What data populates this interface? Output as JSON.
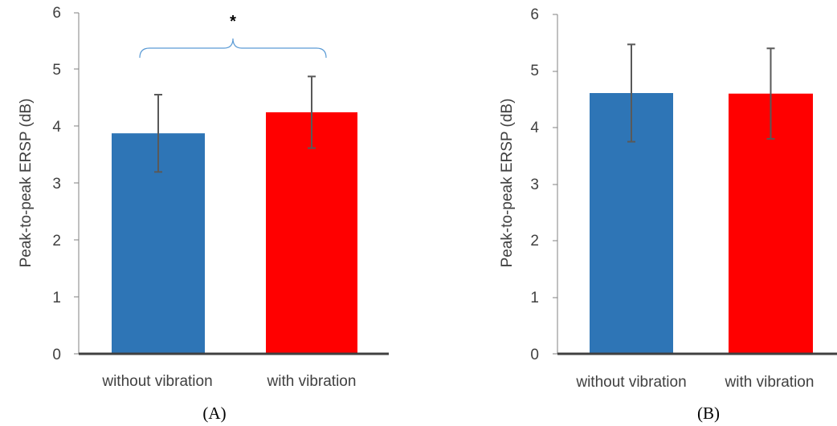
{
  "chart_data": [
    {
      "type": "bar",
      "panel_label": "(A)",
      "categories": [
        "without vibration",
        "with vibration"
      ],
      "values": [
        3.88,
        4.25
      ],
      "error": [
        0.68,
        0.63
      ],
      "colors": [
        "#2e75b6",
        "#ff0000"
      ],
      "ylabel": "Peak-to-peak ERSP (dB)",
      "ylim": [
        0,
        6
      ],
      "yticks": [
        "0",
        "1",
        "2",
        "3",
        "4",
        "5",
        "6"
      ],
      "significance": {
        "marker": "*",
        "between": [
          "without vibration",
          "with vibration"
        ],
        "bracket_color": "#5b9bd5"
      }
    },
    {
      "type": "bar",
      "panel_label": "(B)",
      "categories": [
        "without vibration",
        "with vibration"
      ],
      "values": [
        4.61,
        4.6
      ],
      "error": [
        0.86,
        0.8
      ],
      "colors": [
        "#2e75b6",
        "#ff0000"
      ],
      "ylabel": "Peak-to-peak ERSP (dB)",
      "ylim": [
        0,
        6
      ],
      "yticks": [
        "0",
        "1",
        "2",
        "3",
        "4",
        "5",
        "6"
      ]
    }
  ]
}
